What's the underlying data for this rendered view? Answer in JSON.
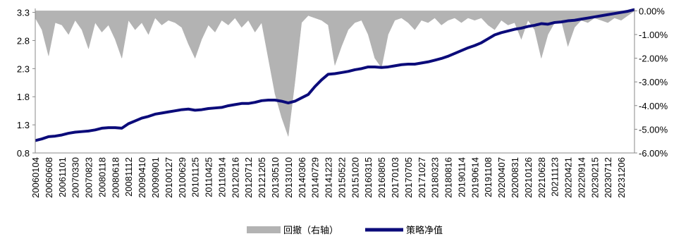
{
  "chart_data": {
    "type": "line",
    "categories": [
      "20060104",
      null,
      "20060608",
      null,
      "20061101",
      null,
      "20070330",
      null,
      "20070823",
      null,
      "20080118",
      null,
      "20080618",
      null,
      "20081112",
      null,
      "20090410",
      null,
      "20090901",
      null,
      "20100127",
      null,
      "20100629",
      null,
      "20101125",
      null,
      "20110425",
      null,
      "20110914",
      null,
      "20120216",
      null,
      "20120712",
      null,
      "20121205",
      null,
      "20130510",
      null,
      "20131010",
      null,
      "20140306",
      null,
      "20140729",
      null,
      "20141223",
      null,
      "20150522",
      null,
      "20151020",
      null,
      "20160315",
      null,
      "20160805",
      null,
      "20170103",
      null,
      "20170705",
      null,
      "20171027",
      null,
      "20180323",
      null,
      "20180816",
      null,
      "20190114",
      null,
      "20190614",
      null,
      "20191108",
      null,
      "20200407",
      null,
      "20200831",
      null,
      "20210126",
      null,
      "20210628",
      null,
      "20211123",
      null,
      "20220421",
      null,
      "20220914",
      null,
      "20230215",
      null,
      "20230712",
      null,
      "20231206",
      null,
      null
    ],
    "series": [
      {
        "name": "回撤（右轴）",
        "color": "#b3b3b3",
        "axis": "y2",
        "kind": "area",
        "values": [
          -0.3,
          -0.8,
          -1.9,
          -0.5,
          -0.6,
          -1.0,
          -0.4,
          -0.8,
          -1.6,
          -0.5,
          -0.9,
          -0.6,
          -1.2,
          -2.0,
          -0.4,
          -0.8,
          -0.5,
          -1.0,
          -0.3,
          -0.6,
          -0.4,
          -0.5,
          -0.7,
          -1.4,
          -2.0,
          -1.2,
          -0.6,
          -0.9,
          -0.4,
          -0.6,
          -0.3,
          -0.7,
          -0.4,
          -0.9,
          -0.5,
          -2.0,
          -3.5,
          -4.5,
          -5.3,
          -3.0,
          -0.5,
          -0.2,
          -0.3,
          -0.4,
          -0.6,
          -2.3,
          -1.5,
          -0.8,
          -0.5,
          -0.4,
          -1.0,
          -2.0,
          -2.4,
          -1.0,
          -0.4,
          -0.3,
          -0.5,
          -0.8,
          -0.4,
          -0.5,
          -0.3,
          -0.6,
          -0.4,
          -0.3,
          -0.5,
          -0.3,
          -0.4,
          -0.3,
          -0.6,
          -0.8,
          -0.4,
          -0.6,
          -0.5,
          -1.2,
          -0.4,
          -0.8,
          -2.0,
          -1.0,
          -0.5,
          -0.4,
          -1.5,
          -0.7,
          -0.4,
          -0.5,
          -0.3,
          -0.4,
          -0.5,
          -0.3,
          -0.4,
          -0.2,
          0
        ]
      },
      {
        "name": "策略净值",
        "color": "#0b0b7a",
        "axis": "y",
        "kind": "line",
        "values": [
          1.02,
          1.05,
          1.09,
          1.1,
          1.12,
          1.15,
          1.17,
          1.18,
          1.19,
          1.21,
          1.24,
          1.25,
          1.25,
          1.24,
          1.32,
          1.37,
          1.42,
          1.45,
          1.49,
          1.51,
          1.53,
          1.55,
          1.57,
          1.58,
          1.56,
          1.57,
          1.59,
          1.6,
          1.61,
          1.64,
          1.66,
          1.68,
          1.68,
          1.7,
          1.73,
          1.74,
          1.74,
          1.72,
          1.69,
          1.72,
          1.78,
          1.84,
          1.98,
          2.1,
          2.2,
          2.21,
          2.23,
          2.25,
          2.28,
          2.3,
          2.33,
          2.33,
          2.32,
          2.33,
          2.35,
          2.37,
          2.38,
          2.38,
          2.4,
          2.42,
          2.45,
          2.48,
          2.52,
          2.57,
          2.62,
          2.67,
          2.71,
          2.76,
          2.83,
          2.9,
          2.94,
          2.97,
          3.0,
          3.02,
          3.05,
          3.07,
          3.1,
          3.09,
          3.12,
          3.13,
          3.15,
          3.16,
          3.18,
          3.2,
          3.22,
          3.24,
          3.26,
          3.28,
          3.3,
          3.32,
          3.35
        ]
      }
    ],
    "ylim": [
      0.8,
      3.37
    ],
    "yticks": [
      0.8,
      1.3,
      1.8,
      2.3,
      2.8,
      3.3
    ],
    "y2lim": [
      -6,
      0.1
    ],
    "y2ticks": [
      {
        "value": 0,
        "label": "0.00%"
      },
      {
        "value": -1,
        "label": "-1.00%"
      },
      {
        "value": -2,
        "label": "-2.00%"
      },
      {
        "value": -3,
        "label": "-3.00%"
      },
      {
        "value": -4,
        "label": "-4.00%"
      },
      {
        "value": -5,
        "label": "-5.00%"
      },
      {
        "value": -6,
        "label": "-6.00%"
      }
    ],
    "legend": "bottom"
  }
}
